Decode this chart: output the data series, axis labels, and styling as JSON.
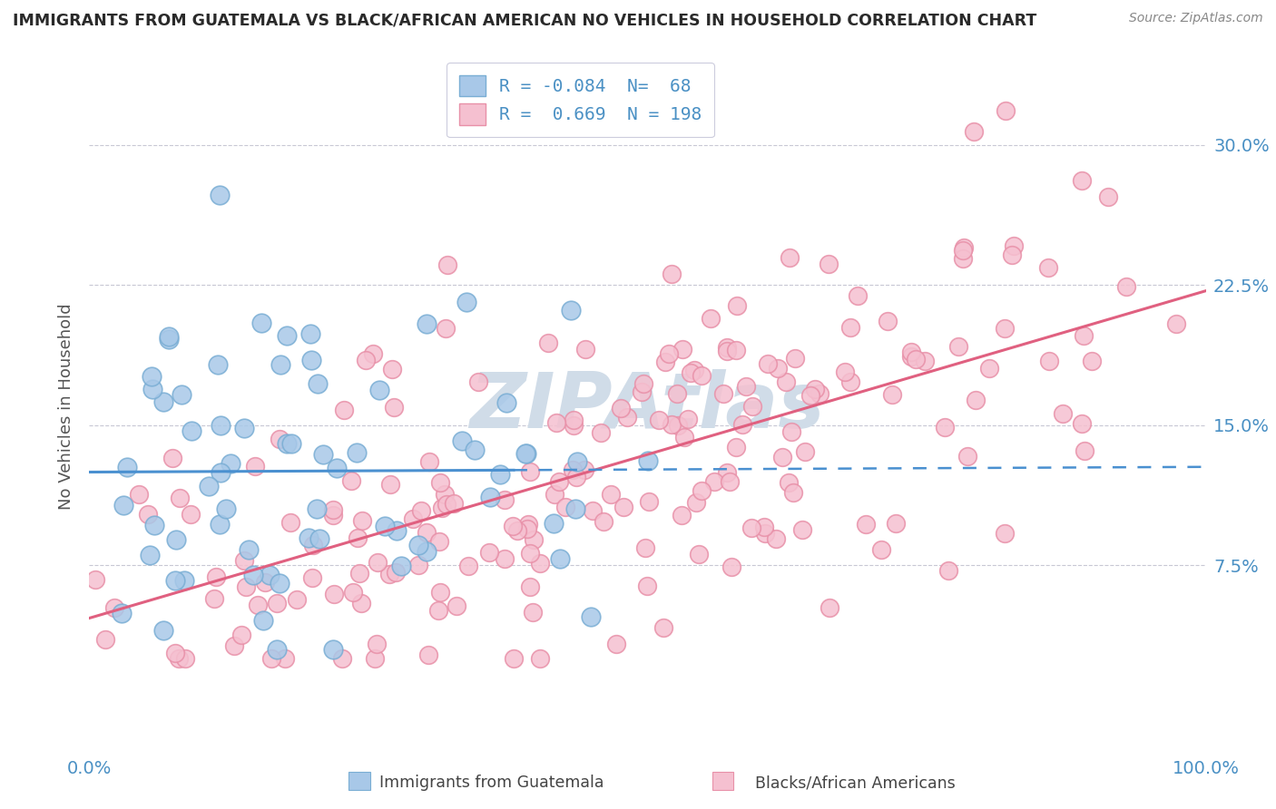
{
  "title": "IMMIGRANTS FROM GUATEMALA VS BLACK/AFRICAN AMERICAN NO VEHICLES IN HOUSEHOLD CORRELATION CHART",
  "source": "Source: ZipAtlas.com",
  "ylabel": "No Vehicles in Household",
  "yticks_labels": [
    "7.5%",
    "15.0%",
    "22.5%",
    "30.0%"
  ],
  "ytick_vals": [
    0.075,
    0.15,
    0.225,
    0.3
  ],
  "xlim": [
    0.0,
    1.0
  ],
  "ylim": [
    -0.025,
    0.345
  ],
  "color_blue": "#a8c8e8",
  "color_blue_edge": "#7aaed4",
  "color_pink": "#f5c0d0",
  "color_pink_edge": "#e890a8",
  "color_blue_line": "#4a90d0",
  "color_pink_line": "#e06080",
  "watermark_color": "#d0dce8",
  "background_color": "#ffffff",
  "grid_color": "#c8c8d4",
  "title_color": "#2a2a2a",
  "axis_color": "#4a90c4",
  "ylabel_color": "#555555",
  "legend_text_color": "#4a90c4",
  "legend_label1": "R = -0.084  N=  68",
  "legend_label2": "R =  0.669  N = 198"
}
